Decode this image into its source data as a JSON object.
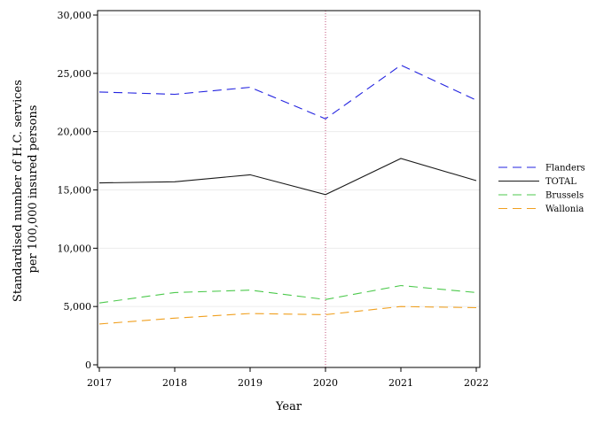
{
  "chart_data": {
    "type": "line",
    "xlabel": "Year",
    "ylabel_lines": [
      "Standardised number of H.C. services",
      "per 100,000 insured persons"
    ],
    "x": [
      2017,
      2018,
      2019,
      2020,
      2021,
      2022
    ],
    "x_tick_labels": [
      "2017",
      "2018",
      "2019",
      "2020",
      "2021",
      "2022"
    ],
    "xlim": [
      2017,
      2022
    ],
    "ylim": [
      0,
      30000
    ],
    "y_ticks": [
      0,
      5000,
      10000,
      15000,
      20000,
      25000,
      30000
    ],
    "y_tick_labels": [
      "0",
      "5,000",
      "10,000",
      "15,000",
      "20,000",
      "25,000",
      "30,000"
    ],
    "grid": "horizontal light",
    "legend_position": "right",
    "reference_line": {
      "x": 2020,
      "style": "dotted",
      "color": "#c0507a"
    },
    "series": [
      {
        "name": "Flanders",
        "color": "#2323e0",
        "dash": "10,6",
        "values": [
          23400,
          23200,
          23800,
          21100,
          25700,
          22700
        ]
      },
      {
        "name": "TOTAL",
        "color": "#1a1a1a",
        "dash": "none",
        "values": [
          15600,
          15700,
          16300,
          14600,
          17700,
          15800
        ]
      },
      {
        "name": "Brussels",
        "color": "#4cc94c",
        "dash": "10,6",
        "values": [
          5300,
          6200,
          6400,
          5600,
          6800,
          6200
        ]
      },
      {
        "name": "Wallonia",
        "color": "#f0a020",
        "dash": "10,6",
        "values": [
          3500,
          4000,
          4400,
          4300,
          5000,
          4900
        ]
      }
    ]
  }
}
